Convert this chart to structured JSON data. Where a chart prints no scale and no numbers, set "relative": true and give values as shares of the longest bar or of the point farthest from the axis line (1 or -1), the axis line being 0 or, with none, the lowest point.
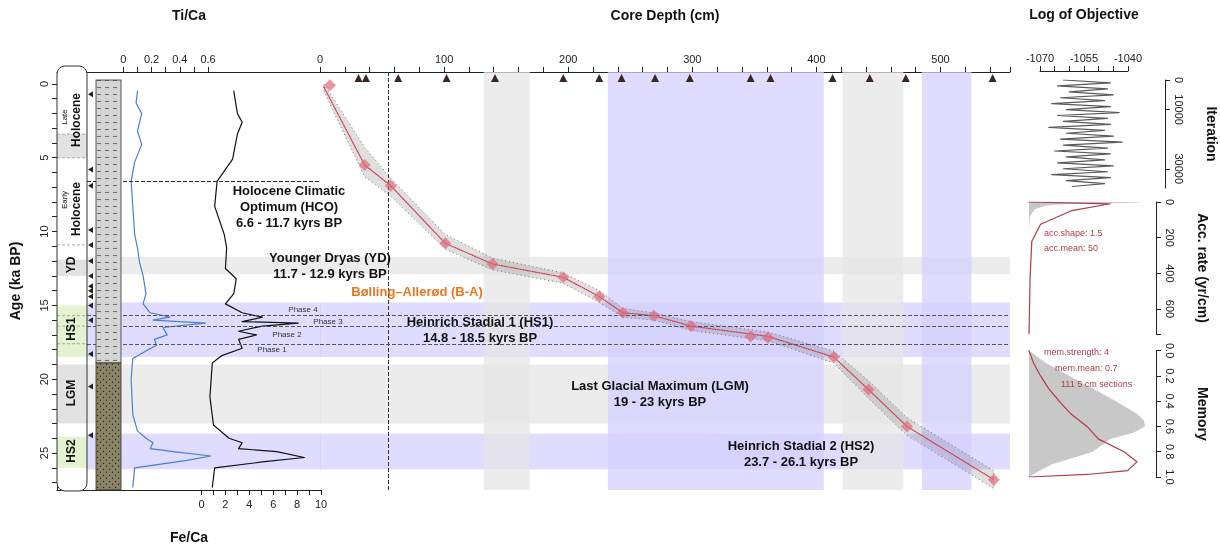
{
  "chart_data": [
    {
      "type": "line",
      "orientation": "horizontal",
      "marker": "none",
      "x2label": "Ti/Ca",
      "xlabel": "Fe/Ca",
      "ylabel": "Age (ka BP)",
      "series": [
        {
          "axis": "x2",
          "color": "#4a7fd0",
          "x": [
            0.5,
            1.3,
            2.0,
            3.2,
            4.1,
            5.3,
            6.6,
            8.3,
            10.2,
            11.1,
            12.1,
            13.0,
            14.2,
            14.9,
            15.5,
            15.8,
            16.0,
            16.2,
            16.5,
            17.0,
            17.3,
            17.7,
            18.0,
            18.6,
            20.0,
            22.4,
            23.5,
            24.0,
            24.3,
            24.7,
            24.9,
            25.2,
            25.5,
            26.0,
            27.3
          ],
          "values": [
            0.1,
            0.09,
            0.13,
            0.1,
            0.13,
            0.08,
            0.055,
            0.067,
            0.08,
            0.1,
            0.115,
            0.14,
            0.16,
            0.14,
            0.19,
            0.33,
            0.21,
            0.58,
            0.28,
            0.31,
            0.22,
            0.235,
            0.175,
            0.067,
            0.055,
            0.067,
            0.1,
            0.16,
            0.21,
            0.19,
            0.355,
            0.62,
            0.45,
            0.08,
            0.067
          ]
        },
        {
          "color": "#111111",
          "x": [
            0.5,
            2.0,
            2.6,
            3.4,
            5.1,
            6.6,
            8.3,
            10.2,
            11.1,
            12.5,
            13.2,
            14.2,
            14.9,
            15.5,
            15.8,
            16.1,
            16.2,
            16.4,
            16.75,
            17.0,
            17.3,
            17.9,
            18.4,
            18.9,
            21.2,
            23.1,
            24.0,
            24.3,
            24.7,
            24.9,
            25.3,
            25.6,
            26.0,
            27.3
          ],
          "values": [
            2.7,
            3.0,
            3.4,
            3.0,
            2.6,
            1.3,
            1.1,
            1.9,
            2.1,
            2.0,
            2.9,
            2.7,
            2.0,
            3.4,
            5.1,
            3.4,
            8.1,
            5.1,
            3.1,
            4.6,
            3.1,
            3.4,
            1.7,
            0.9,
            0.7,
            1.0,
            2.3,
            3.4,
            3.1,
            6.3,
            8.6,
            5.1,
            1.1,
            0.9
          ]
        }
      ],
      "x2lim": [
        -0.47,
        1.4
      ],
      "x2ticks": [
        0,
        {
          "value": 0.1,
          "label": null
        },
        0.2,
        {
          "value": 0.3,
          "label": null
        },
        0.4,
        {
          "value": 0.5,
          "label": null
        },
        0.6
      ],
      "xlim": [
        -12.1,
        10
      ],
      "xticks": [
        0,
        {
          "value": 1,
          "label": null
        },
        2,
        {
          "value": 3,
          "label": null
        },
        4,
        {
          "value": 5,
          "label": null
        },
        6,
        {
          "value": 7,
          "label": null
        },
        8,
        {
          "value": 9,
          "label": null
        },
        10
      ],
      "ylim": [
        27.5,
        -0.8
      ],
      "yticks": [
        0,
        {
          "value": 1,
          "label": null
        },
        {
          "value": 2,
          "label": null
        },
        {
          "value": 3,
          "label": null
        },
        {
          "value": 4,
          "label": null
        },
        5,
        {
          "value": 6,
          "label": null
        },
        {
          "value": 7,
          "label": null
        },
        {
          "value": 8,
          "label": null
        },
        {
          "value": 9,
          "label": null
        },
        10,
        {
          "value": 11,
          "label": null
        },
        {
          "value": 12,
          "label": null
        },
        {
          "value": 13,
          "label": null
        },
        {
          "value": 14,
          "label": null
        },
        15,
        {
          "value": 16,
          "label": null
        },
        {
          "value": 17,
          "label": null
        },
        {
          "value": 18,
          "label": null
        },
        {
          "value": 19,
          "label": null
        },
        20,
        {
          "value": 21,
          "label": null
        },
        {
          "value": 22,
          "label": null
        },
        {
          "value": 23,
          "label": null
        },
        {
          "value": 24,
          "label": null
        },
        25,
        {
          "value": 26,
          "label": null
        },
        {
          "value": 27,
          "label": null
        }
      ],
      "bands": [
        {
          "axis": "y",
          "from": 11.7,
          "to": 12.9,
          "color": "#e6e6e6"
        },
        {
          "axis": "y",
          "from": 14.8,
          "to": 18.5,
          "color": "#d4d0ff"
        },
        {
          "axis": "y",
          "from": 19,
          "to": 23,
          "color": "#e6e6e6"
        },
        {
          "axis": "y",
          "from": 23.7,
          "to": 26.1,
          "color": "#d4d0ff"
        }
      ],
      "ref_lines": [
        {
          "axis": "y",
          "value": 6.6,
          "color": "#333333",
          "line_style": "dashed"
        },
        {
          "axis": "y",
          "value": 15.7,
          "color": "#555555",
          "line_style": "dashed"
        },
        {
          "axis": "y",
          "value": 16.4,
          "color": "#555555",
          "line_style": "dashed"
        },
        {
          "axis": "y",
          "value": 17.6,
          "color": "#555555",
          "line_style": "dashed"
        }
      ],
      "annotations": [
        "Late",
        "Holocene",
        "Early",
        "Holocene",
        "YD",
        "HS1",
        "LGM",
        "HS2",
        "Phase 4",
        "Phase 3",
        "Phase 2",
        "Phase 1"
      ]
    },
    {
      "type": "line",
      "xlabel": "Core Depth (cm)",
      "tick_labels": "x",
      "marker": "none",
      "series": [
        {
          "color": "#d04050",
          "line_style": "dotted",
          "x": [
            3,
            36,
            57,
            101,
            139,
            196,
            225,
            244,
            269,
            299,
            361,
            414,
            442,
            473,
            543
          ],
          "values": [
            0.2,
            5.5,
            6.9,
            10.8,
            12.2,
            13.1,
            14.4,
            15.5,
            15.7,
            16.4,
            17.1,
            18.5,
            20.7,
            23.2,
            26.8
          ],
          "lower": [
            0.0,
            4.3,
            6.4,
            10.2,
            11.8,
            12.8,
            14.0,
            15.2,
            15.5,
            16.1,
            16.8,
            18.1,
            20.1,
            22.6,
            26.2
          ],
          "upper": [
            0.5,
            6.3,
            7.6,
            11.2,
            12.6,
            13.5,
            14.8,
            15.8,
            16.0,
            16.7,
            17.4,
            18.9,
            21.3,
            23.8,
            27.4
          ]
        },
        {
          "type": "scatter",
          "color": "#e06878",
          "marker": "diamond",
          "x": [
            8,
            36,
            57,
            101,
            139,
            196,
            225,
            244,
            269,
            299,
            347,
            361,
            414,
            442,
            473,
            543
          ],
          "values": [
            0.1,
            5.5,
            6.9,
            10.8,
            12.2,
            13.1,
            14.4,
            15.5,
            15.7,
            16.4,
            17.1,
            17.2,
            18.5,
            20.7,
            23.2,
            26.8
          ]
        },
        {
          "type": "scatter",
          "color": "#3b2622",
          "marker": "triangle",
          "x": [
            31,
            37,
            63,
            102,
            141,
            196,
            225,
            243,
            270,
            298,
            347,
            363,
            413,
            443,
            472,
            542
          ],
          "values": [
            -0.4,
            -0.4,
            -0.4,
            -0.4,
            -0.4,
            -0.4,
            -0.4,
            -0.4,
            -0.4,
            -0.4,
            -0.4,
            -0.4,
            -0.4,
            -0.4,
            -0.4,
            -0.4
          ]
        }
      ],
      "xlim": [
        0,
        556
      ],
      "xticks": [
        0,
        {
          "value": 20,
          "label": null
        },
        {
          "value": 40,
          "label": null
        },
        {
          "value": 60,
          "label": null
        },
        {
          "value": 80,
          "label": null
        },
        100,
        {
          "value": 120,
          "label": null
        },
        {
          "value": 140,
          "label": null
        },
        {
          "value": 160,
          "label": null
        },
        {
          "value": 180,
          "label": null
        },
        200,
        {
          "value": 220,
          "label": null
        },
        {
          "value": 240,
          "label": null
        },
        {
          "value": 260,
          "label": null
        },
        {
          "value": 280,
          "label": null
        },
        300,
        {
          "value": 320,
          "label": null
        },
        {
          "value": 340,
          "label": null
        },
        {
          "value": 360,
          "label": null
        },
        {
          "value": 380,
          "label": null
        },
        400,
        {
          "value": 420,
          "label": null
        },
        {
          "value": 440,
          "label": null
        },
        {
          "value": 460,
          "label": null
        },
        {
          "value": 480,
          "label": null
        },
        500,
        {
          "value": 520,
          "label": null
        },
        {
          "value": 540,
          "label": null
        }
      ],
      "ylim": [
        27.5,
        -0.8
      ],
      "bands": [
        {
          "axis": "y",
          "from": 11.7,
          "to": 12.9,
          "color": "#e6e6e6"
        },
        {
          "axis": "y",
          "from": 14.8,
          "to": 18.5,
          "color": "#d4d0ff"
        },
        {
          "axis": "y",
          "from": 19,
          "to": 23,
          "color": "#e6e6e6"
        },
        {
          "axis": "y",
          "from": 23.7,
          "to": 26.1,
          "color": "#d4d0ff"
        },
        {
          "axis": "x",
          "from": 132,
          "to": 169,
          "color": "#e6e6e6"
        },
        {
          "axis": "x",
          "from": 232,
          "to": 406,
          "color": "#d4d0ff"
        },
        {
          "axis": "x",
          "from": 421,
          "to": 470,
          "color": "#e6e6e6"
        },
        {
          "axis": "x",
          "from": 485,
          "to": 525,
          "color": "#d4d0ff"
        }
      ],
      "ref_lines": [
        {
          "axis": "x",
          "value": 55,
          "color": "#333333",
          "line_style": "dashed"
        },
        {
          "axis": "y",
          "value": 15.7,
          "color": "#555555",
          "line_style": "dashed"
        },
        {
          "axis": "y",
          "value": 16.4,
          "color": "#555555",
          "line_style": "dashed"
        },
        {
          "axis": "y",
          "value": 17.6,
          "color": "#555555",
          "line_style": "dashed"
        }
      ],
      "annotations": [
        "Holocene Climatic\nOptimum (HCO)\n6.6 - 11.7 kyrs BP",
        "Younger Dryas (YD)\n11.7 - 12.9 kyrs BP",
        "Bølling–Allerød  (B-A)",
        "Heinrich Stadial 1 (HS1)\n14.8 - 18.5 kyrs BP",
        "Last Glacial Maximum (LGM)\n19 - 23 kyrs BP",
        "Heinrich Stadial 2 (HS2)\n23.7 - 26.1 kyrs BP"
      ]
    },
    {
      "type": "line",
      "marker": "none",
      "xlabel": "Log of Objective",
      "ylabel": "Iteration",
      "series": [
        {
          "color": "#5a5a5a",
          "x": [
            -1062,
            -1046,
            -1064,
            -1047,
            -1060,
            -1045,
            -1063,
            -1048,
            -1066,
            -1046,
            -1061,
            -1043,
            -1064,
            -1047,
            -1062,
            -1046,
            -1067,
            -1048,
            -1061,
            -1045,
            -1063,
            -1042,
            -1062,
            -1047,
            -1065,
            -1046,
            -1061,
            -1048,
            -1064,
            -1045,
            -1062,
            -1047,
            -1066,
            -1046,
            -1061,
            -1048,
            -1059
          ],
          "values": [
            0,
            1000,
            2000,
            3000,
            4000,
            5000,
            6000,
            7000,
            8000,
            9000,
            10000,
            11000,
            12000,
            13000,
            14000,
            15000,
            16000,
            17000,
            18000,
            19000,
            20000,
            21000,
            22000,
            23000,
            24000,
            25000,
            26000,
            27000,
            28000,
            29000,
            30000,
            31000,
            32000,
            33000,
            34000,
            35000,
            36000
          ]
        }
      ],
      "xlim": [
        -1070,
        -1040
      ],
      "xticks": [
        -1070,
        {
          "value": -1065,
          "label": null
        },
        {
          "value": -1060,
          "label": null
        },
        -1055,
        {
          "value": -1050,
          "label": null
        },
        {
          "value": -1045,
          "label": null
        },
        -1040
      ],
      "ylim": [
        36500,
        0
      ],
      "yticks": [
        0,
        10000,
        30000
      ]
    },
    {
      "type": "line",
      "orientation": "horizontal",
      "relative": true,
      "marker": "none",
      "ylabel": "Acc. rate (yr/cm)",
      "series": [
        {
          "type": "area",
          "color": "#c8c8c8",
          "x": [
            0,
            4,
            10,
            20,
            40,
            80,
            150
          ],
          "values": [
            1,
            0.9,
            0.35,
            0.15,
            0.05,
            0.01,
            0
          ]
        },
        {
          "color": "#b03a48",
          "x": [
            0,
            10,
            48,
            125,
            221,
            414,
            740
          ],
          "values": [
            0,
            0.7,
            0.37,
            0.1,
            0.024,
            0.01,
            0
          ]
        }
      ],
      "ylim": [
        740,
        0
      ],
      "yticks": [
        0,
        200,
        400,
        600
      ],
      "annotations": [
        "acc.shape:  1.5",
        "acc.mean:  50"
      ]
    },
    {
      "type": "line",
      "orientation": "horizontal",
      "relative": true,
      "marker": "none",
      "ylabel": "Memory",
      "series": [
        {
          "type": "area",
          "color": "#c8c8c8",
          "x": [
            0,
            0.1,
            0.2,
            0.3,
            0.4,
            0.5,
            0.55,
            0.6,
            0.65,
            0.7,
            0.8,
            0.9,
            0.97,
            1.0
          ],
          "values": [
            0,
            0.15,
            0.35,
            0.55,
            0.75,
            0.93,
            0.99,
            1,
            0.9,
            0.7,
            0.55,
            0.2,
            0.05,
            0
          ]
        },
        {
          "color": "#b03a48",
          "x": [
            0,
            0.1,
            0.2,
            0.3,
            0.4,
            0.5,
            0.6,
            0.7,
            0.8,
            0.88,
            0.95,
            0.98,
            1.0
          ],
          "values": [
            0,
            0.04,
            0.1,
            0.17,
            0.26,
            0.36,
            0.5,
            0.6,
            0.82,
            0.93,
            0.85,
            0.5,
            0
          ]
        }
      ],
      "ylim": [
        1,
        0
      ],
      "yticks": [
        {
          "value": 0,
          "label": "0.0"
        },
        {
          "value": 0.2,
          "label": "0.2"
        },
        {
          "value": 0.4,
          "label": "0.4"
        },
        {
          "value": 0.6,
          "label": "0.6"
        },
        {
          "value": 0.8,
          "label": "0.8"
        },
        {
          "value": 1,
          "label": "1.0"
        }
      ],
      "annotations": [
        "mem.strength: 4",
        "mem.mean: 0.7",
        "111 5 cm sections"
      ]
    }
  ]
}
